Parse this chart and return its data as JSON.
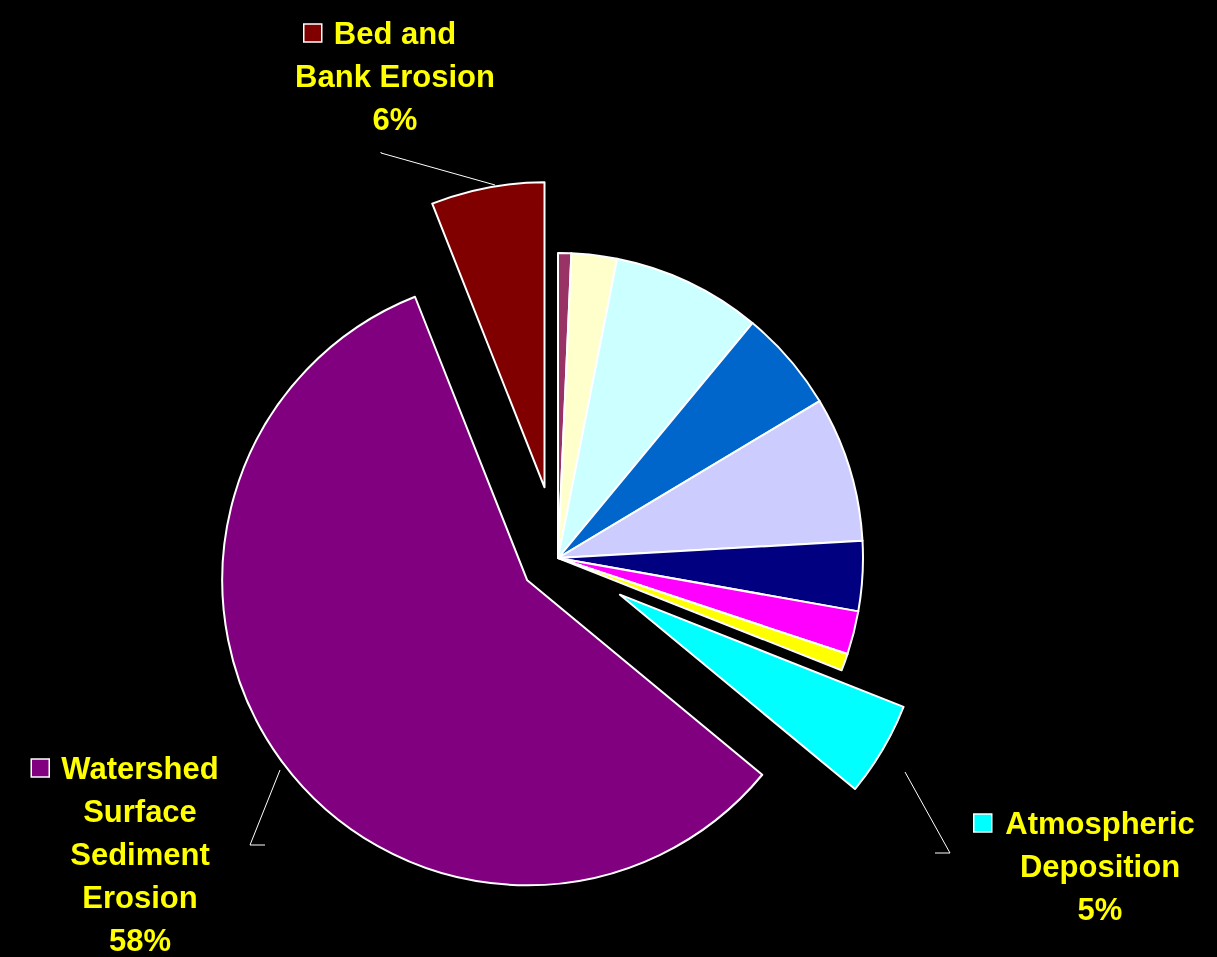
{
  "chart_data": {
    "type": "pie",
    "categories": [
      null,
      null,
      null,
      null,
      null,
      null,
      null,
      null,
      "Atmospheric Deposition",
      "Watershed Surface Sediment Erosion",
      "Bed and Bank Erosion"
    ],
    "values": [
      0.7,
      2.4,
      7.9,
      5.4,
      7.7,
      3.7,
      2.3,
      0.9,
      5,
      58,
      6
    ],
    "colors": [
      "#993366",
      "#ffffcc",
      "#ccffff",
      "#0066cc",
      "#ccccff",
      "#000080",
      "#ff00ff",
      "#ffff00",
      "#00ffff",
      "#800080",
      "#800000"
    ],
    "value_labels": [
      null,
      null,
      null,
      null,
      null,
      null,
      null,
      null,
      "5%",
      "58%",
      "6%"
    ],
    "legend": true
  }
}
